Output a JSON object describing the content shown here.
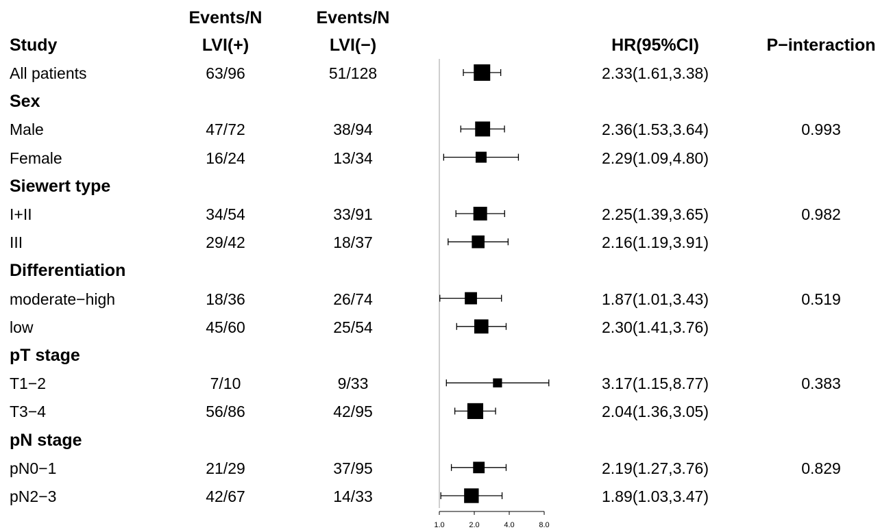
{
  "headers": {
    "study": "Study",
    "events_pos_top": "Events/N",
    "events_pos": "LVI(+)",
    "events_neg_top": "Events/N",
    "events_neg": "LVI(−)",
    "hr": "HR(95%CI)",
    "p": "P−interaction"
  },
  "rows": [
    {
      "label": "All patients",
      "group": false,
      "pos": "63/96",
      "neg": "51/128",
      "hr_text": "2.33(1.61,3.38)",
      "p": ""
    },
    {
      "label": "Sex",
      "group": true
    },
    {
      "label": "Male",
      "group": false,
      "pos": "47/72",
      "neg": "38/94",
      "hr_text": "2.36(1.53,3.64)",
      "p": "0.993"
    },
    {
      "label": "Female",
      "group": false,
      "pos": "16/24",
      "neg": "13/34",
      "hr_text": "2.29(1.09,4.80)",
      "p": ""
    },
    {
      "label": "Siewert type",
      "group": true
    },
    {
      "label": "I+II",
      "group": false,
      "pos": "34/54",
      "neg": "33/91",
      "hr_text": "2.25(1.39,3.65)",
      "p": "0.982"
    },
    {
      "label": "III",
      "group": false,
      "pos": "29/42",
      "neg": "18/37",
      "hr_text": "2.16(1.19,3.91)",
      "p": ""
    },
    {
      "label": "Differentiation",
      "group": true
    },
    {
      "label": "moderate−high",
      "group": false,
      "pos": "18/36",
      "neg": "26/74",
      "hr_text": "1.87(1.01,3.43)",
      "p": "0.519"
    },
    {
      "label": "low",
      "group": false,
      "pos": "45/60",
      "neg": "25/54",
      "hr_text": "2.30(1.41,3.76)",
      "p": ""
    },
    {
      "label": "pT stage",
      "group": true
    },
    {
      "label": "T1−2",
      "group": false,
      "pos": "7/10",
      "neg": "9/33",
      "hr_text": "3.17(1.15,8.77)",
      "p": "0.383"
    },
    {
      "label": "T3−4",
      "group": false,
      "pos": "56/86",
      "neg": "42/95",
      "hr_text": "2.04(1.36,3.05)",
      "p": ""
    },
    {
      "label": "pN stage",
      "group": true
    },
    {
      "label": "pN0−1",
      "group": false,
      "pos": "21/29",
      "neg": "37/95",
      "hr_text": "2.19(1.27,3.76)",
      "p": "0.829"
    },
    {
      "label": "pN2−3",
      "group": false,
      "pos": "42/67",
      "neg": "14/33",
      "hr_text": "1.89(1.03,3.47)",
      "p": ""
    }
  ],
  "chart_data": {
    "type": "forest",
    "x_scale": "log2",
    "xlim": [
      1.0,
      8.0
    ],
    "x_ticks": [
      "1.0",
      "2.0",
      "4.0",
      "8.0"
    ],
    "reference_line": 1.0,
    "colors": {
      "marker": "#000000",
      "reference_line": "#bfbfbf"
    },
    "points": [
      {
        "label": "All patients",
        "hr": 2.33,
        "lower": 1.61,
        "upper": 3.38,
        "weight": 96
      },
      {
        "label": "Male",
        "hr": 2.36,
        "lower": 1.53,
        "upper": 3.64,
        "weight": 72
      },
      {
        "label": "Female",
        "hr": 2.29,
        "lower": 1.09,
        "upper": 4.8,
        "weight": 24
      },
      {
        "label": "I+II",
        "hr": 2.25,
        "lower": 1.39,
        "upper": 3.65,
        "weight": 54
      },
      {
        "label": "III",
        "hr": 2.16,
        "lower": 1.19,
        "upper": 3.91,
        "weight": 42
      },
      {
        "label": "moderate−high",
        "hr": 1.87,
        "lower": 1.01,
        "upper": 3.43,
        "weight": 36
      },
      {
        "label": "low",
        "hr": 2.3,
        "lower": 1.41,
        "upper": 3.76,
        "weight": 60
      },
      {
        "label": "T1−2",
        "hr": 3.17,
        "lower": 1.15,
        "upper": 8.77,
        "weight": 10
      },
      {
        "label": "T3−4",
        "hr": 2.04,
        "lower": 1.36,
        "upper": 3.05,
        "weight": 86
      },
      {
        "label": "pN0−1",
        "hr": 2.19,
        "lower": 1.27,
        "upper": 3.76,
        "weight": 29
      },
      {
        "label": "pN2−3",
        "hr": 1.89,
        "lower": 1.03,
        "upper": 3.47,
        "weight": 67
      }
    ]
  }
}
